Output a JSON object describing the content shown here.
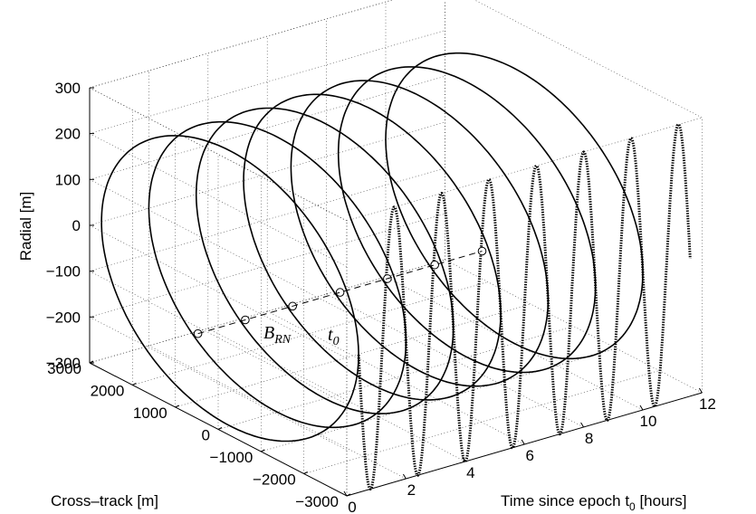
{
  "chart_data": {
    "type": "line3d",
    "title": "",
    "xlabel": "Time since epoch t",
    "xlabel_sub": "0",
    "xlabel_tail": " [hours]",
    "ylabel": "Cross–track [m]",
    "zlabel": "Radial [m]",
    "xlim": [
      0,
      12
    ],
    "ylim": [
      -3000,
      3000
    ],
    "zlim": [
      -300,
      300
    ],
    "grid": true,
    "x_ticks": [
      "0",
      "2",
      "4",
      "6",
      "8",
      "10",
      "12"
    ],
    "x_tick_values": [
      0,
      2,
      4,
      6,
      8,
      10,
      12
    ],
    "y_ticks": [
      "3000",
      "2000",
      "1000",
      "0",
      "−1000",
      "−2000",
      "−3000"
    ],
    "y_tick_values": [
      3000,
      2000,
      1000,
      0,
      -1000,
      -2000,
      -3000
    ],
    "z_ticks": [
      "300",
      "200",
      "100",
      "0",
      "−100",
      "−200",
      "−300"
    ],
    "z_tick_values": [
      300,
      200,
      100,
      0,
      -100,
      -200,
      -300
    ],
    "orbit": {
      "description_from_figure": "relative orbit ellipses in cross-track/radial plane, one per revolution",
      "revolutions": 7,
      "period_hours": 1.6,
      "start_time_hours": 0.4,
      "cross_track_amplitude_m": 3000,
      "radial_amplitude_m": 300
    },
    "annotations": [
      {
        "text": "B",
        "sub": "RN"
      },
      {
        "text": "t",
        "sub": "0"
      }
    ]
  }
}
